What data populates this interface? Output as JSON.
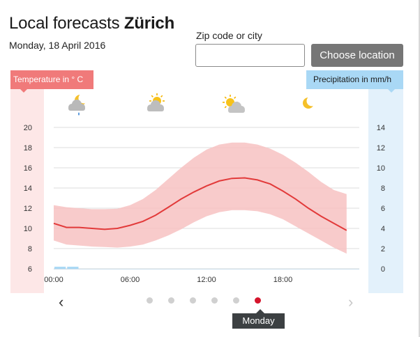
{
  "header": {
    "title_prefix": "Local forecasts",
    "city": "Zürich",
    "date": "Monday, 18 April 2016"
  },
  "search": {
    "label": "Zip code or city",
    "value": "",
    "placeholder": "",
    "button_label": "Choose location"
  },
  "legend": {
    "temperature_label": "Temperature in ° C",
    "precipitation_label": "Precipitation in mm/h",
    "temperature_color": "#f07a7a",
    "precipitation_color": "#a9d8f5"
  },
  "weather_icons": [
    {
      "time": "00:00",
      "icon": "moon-cloud-rain-icon"
    },
    {
      "time": "06:00",
      "icon": "sun-cloud-icon"
    },
    {
      "time": "12:00",
      "icon": "sun-small-cloud-icon"
    },
    {
      "time": "18:00",
      "icon": "moon-icon"
    }
  ],
  "chart_data": {
    "type": "line",
    "x_tick_labels": [
      "00:00",
      "06:00",
      "12:00",
      "18:00"
    ],
    "y_left_label": "Temperature in ° C",
    "y_left_ticks": [
      6,
      8,
      10,
      12,
      14,
      16,
      18,
      20
    ],
    "y_left_range": [
      6,
      20
    ],
    "y_right_label": "Precipitation in mm/h",
    "y_right_ticks": [
      0,
      2,
      4,
      6,
      8,
      10,
      12,
      14
    ],
    "y_right_range": [
      0,
      14
    ],
    "x_hours": [
      0,
      1,
      2,
      3,
      4,
      5,
      6,
      7,
      8,
      9,
      10,
      11,
      12,
      13,
      14,
      15,
      16,
      17,
      18,
      19,
      20,
      21,
      22,
      23
    ],
    "series": [
      {
        "name": "Temperature in ° C",
        "axis": "left",
        "color": "#e23a3a",
        "values": [
          10.5,
          10.1,
          10.1,
          10.0,
          9.9,
          10.0,
          10.3,
          10.7,
          11.3,
          12.1,
          12.9,
          13.6,
          14.2,
          14.7,
          14.95,
          15.0,
          14.8,
          14.4,
          13.7,
          12.9,
          12.0,
          11.2,
          10.5,
          9.8
        ]
      },
      {
        "axis": "left",
        "type": "area",
        "color": "#f7c2c2",
        "low": [
          8.8,
          8.4,
          8.3,
          8.2,
          8.15,
          8.1,
          8.2,
          8.4,
          8.8,
          9.3,
          9.9,
          10.6,
          11.2,
          11.6,
          11.8,
          11.8,
          11.7,
          11.4,
          10.9,
          10.2,
          9.5,
          8.8,
          8.1,
          7.5
        ],
        "high": [
          12.3,
          12.1,
          12.0,
          11.9,
          11.9,
          11.95,
          12.3,
          12.9,
          13.8,
          14.9,
          16.0,
          17.0,
          17.8,
          18.3,
          18.5,
          18.5,
          18.3,
          17.9,
          17.3,
          16.5,
          15.6,
          14.6,
          13.8,
          13.4
        ]
      },
      {
        "name": "Precipitation in mm/h",
        "axis": "right",
        "type": "bar",
        "color": "#a9d8f5",
        "values": [
          0.2,
          0.2,
          0,
          0,
          0,
          0,
          0,
          0,
          0,
          0,
          0,
          0,
          0,
          0,
          0,
          0,
          0,
          0,
          0,
          0,
          0,
          0,
          0,
          0
        ]
      }
    ],
    "grid": true
  },
  "pager": {
    "dot_count": 6,
    "active_index": 5,
    "active_day_label": "Monday"
  }
}
